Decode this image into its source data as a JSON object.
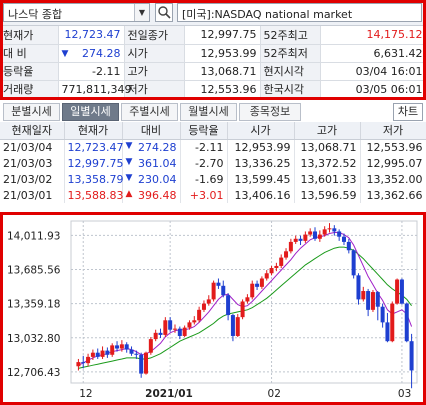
{
  "search": {
    "symbol": "나스닥 종합",
    "market": "[미국]:NASDAQ national market"
  },
  "quote": {
    "rows": [
      [
        {
          "l": "현재가"
        },
        {
          "v": "12,723.47",
          "c": "blue"
        },
        {
          "l": "전일종가"
        },
        {
          "v": "12,997.75"
        },
        {
          "l": "52주최고"
        },
        {
          "v": "14,175.12",
          "c": "red"
        }
      ],
      [
        {
          "l": "대 비"
        },
        {
          "v": "274.28",
          "c": "blue",
          "tri": "▼"
        },
        {
          "l": "시가"
        },
        {
          "v": "12,953.99"
        },
        {
          "l": "52주최저"
        },
        {
          "v": "6,631.42"
        }
      ],
      [
        {
          "l": "등락율"
        },
        {
          "v": "-2.11"
        },
        {
          "l": "고가"
        },
        {
          "v": "13,068.71"
        },
        {
          "l": "현지시각"
        },
        {
          "v": "03/04 16:01"
        }
      ],
      [
        {
          "l": "거래량"
        },
        {
          "v": "771,811,349"
        },
        {
          "l": "저가"
        },
        {
          "v": "12,553.96"
        },
        {
          "l": "한국시각"
        },
        {
          "v": "03/05 06:01"
        }
      ]
    ]
  },
  "tabs": [
    "분별시세",
    "일별시세",
    "주별시세",
    "월별시세",
    "종목정보"
  ],
  "active_tab": 1,
  "chart_button": "차트",
  "grid": {
    "headers": [
      "현재일자",
      "현재가",
      "대비",
      "등락율",
      "시가",
      "고가",
      "저가"
    ],
    "rows": [
      {
        "date": "21/03/04",
        "price": "12,723.47",
        "pc": "blue",
        "tri": "▼",
        "chg": "274.28",
        "rate": "-2.11",
        "rc": "",
        "open": "12,953.99",
        "high": "13,068.71",
        "low": "12,553.96"
      },
      {
        "date": "21/03/03",
        "price": "12,997.75",
        "pc": "blue",
        "tri": "▼",
        "chg": "361.04",
        "rate": "-2.70",
        "rc": "",
        "open": "13,336.25",
        "high": "13,372.52",
        "low": "12,995.07"
      },
      {
        "date": "21/03/02",
        "price": "13,358.79",
        "pc": "blue",
        "tri": "▼",
        "chg": "230.04",
        "rate": "-1.69",
        "rc": "",
        "open": "13,599.45",
        "high": "13,601.33",
        "low": "13,352.00"
      },
      {
        "date": "21/03/01",
        "price": "13,588.83",
        "pc": "red",
        "tri": "▲",
        "chg": "396.48",
        "rate": "+3.01",
        "rc": "red",
        "open": "13,406.16",
        "high": "13,596.59",
        "low": "13,362.66"
      }
    ]
  },
  "colors": {
    "up": "#e21b1b",
    "down": "#1e3fd0",
    "ma_short": "#a020c8",
    "ma_long": "#1a9a1a",
    "frame": "#e00000"
  },
  "chart_data": {
    "type": "candlestick",
    "y_ticks": [
      "14,011.93",
      "13,685.56",
      "13,359.18",
      "13,032.80",
      "12,706.43"
    ],
    "x_labels": [
      "12",
      "2021/01",
      "02",
      "03"
    ],
    "ylim": [
      12600,
      14150
    ],
    "candles": [
      [
        12760,
        12800,
        12720,
        12830
      ],
      [
        12800,
        12790,
        12740,
        12860
      ],
      [
        12790,
        12850,
        12760,
        12880
      ],
      [
        12850,
        12890,
        12820,
        12920
      ],
      [
        12890,
        12850,
        12830,
        12930
      ],
      [
        12850,
        12910,
        12830,
        12950
      ],
      [
        12910,
        12870,
        12840,
        12940
      ],
      [
        12870,
        12960,
        12850,
        12980
      ],
      [
        12960,
        12930,
        12900,
        13000
      ],
      [
        12930,
        12970,
        12900,
        13010
      ],
      [
        12970,
        12920,
        12890,
        12990
      ],
      [
        12920,
        12880,
        12860,
        12950
      ],
      [
        12880,
        12870,
        12830,
        12910
      ],
      [
        12870,
        12690,
        12650,
        12890
      ],
      [
        12690,
        12890,
        12680,
        12900
      ],
      [
        12890,
        13020,
        12870,
        13040
      ],
      [
        13020,
        13080,
        13000,
        13110
      ],
      [
        13080,
        13060,
        13030,
        13120
      ],
      [
        13060,
        13200,
        13040,
        13230
      ],
      [
        13200,
        13110,
        13090,
        13230
      ],
      [
        13110,
        13120,
        13080,
        13160
      ],
      [
        13120,
        13050,
        13020,
        13140
      ],
      [
        13050,
        13130,
        13040,
        13150
      ],
      [
        13130,
        13180,
        13110,
        13200
      ],
      [
        13180,
        13200,
        13160,
        13240
      ],
      [
        13200,
        13300,
        13180,
        13330
      ],
      [
        13300,
        13360,
        13280,
        13390
      ],
      [
        13360,
        13400,
        13340,
        13440
      ],
      [
        13400,
        13560,
        13380,
        13580
      ],
      [
        13560,
        13530,
        13500,
        13600
      ],
      [
        13530,
        13440,
        13420,
        13580
      ],
      [
        13440,
        13250,
        13200,
        13460
      ],
      [
        13250,
        13050,
        13000,
        13260
      ],
      [
        13050,
        13230,
        13040,
        13260
      ],
      [
        13230,
        13380,
        13210,
        13400
      ],
      [
        13380,
        13420,
        13360,
        13450
      ],
      [
        13420,
        13550,
        13400,
        13580
      ],
      [
        13550,
        13520,
        13490,
        13580
      ],
      [
        13520,
        13600,
        13500,
        13620
      ],
      [
        13600,
        13650,
        13580,
        13680
      ],
      [
        13650,
        13700,
        13630,
        13720
      ],
      [
        13700,
        13720,
        13670,
        13750
      ],
      [
        13720,
        13800,
        13700,
        13830
      ],
      [
        13800,
        13860,
        13780,
        13890
      ],
      [
        13860,
        13950,
        13840,
        13980
      ],
      [
        13950,
        13980,
        13930,
        14010
      ],
      [
        13980,
        13960,
        13920,
        14010
      ],
      [
        13960,
        14020,
        13940,
        14050
      ],
      [
        14020,
        14050,
        14000,
        14080
      ],
      [
        14050,
        13980,
        13960,
        14090
      ],
      [
        13980,
        14020,
        13950,
        14060
      ],
      [
        14020,
        14070,
        14000,
        14100
      ],
      [
        14070,
        14080,
        14040,
        14130
      ],
      [
        14080,
        14050,
        14010,
        14110
      ],
      [
        14050,
        14000,
        13960,
        14070
      ],
      [
        14000,
        13950,
        13920,
        14030
      ],
      [
        13950,
        13870,
        13840,
        13980
      ],
      [
        13870,
        13630,
        13600,
        13880
      ],
      [
        13630,
        13400,
        13350,
        13650
      ],
      [
        13400,
        13480,
        13380,
        13520
      ],
      [
        13480,
        13300,
        13240,
        13500
      ],
      [
        13300,
        13470,
        13280,
        13490
      ],
      [
        13470,
        13330,
        13200,
        13480
      ],
      [
        13330,
        13180,
        13130,
        13360
      ],
      [
        13180,
        13000,
        12990,
        13270
      ],
      [
        13000,
        13360,
        12990,
        13380
      ],
      [
        13360,
        13590,
        13350,
        13600
      ],
      [
        13590,
        13360,
        13350,
        13600
      ],
      [
        13360,
        13000,
        12990,
        13370
      ],
      [
        13000,
        12720,
        12550,
        13070
      ]
    ],
    "ma_short": [
      12770,
      12790,
      12820,
      12840,
      12860,
      12870,
      12880,
      12900,
      12910,
      12920,
      12930,
      12920,
      12900,
      12870,
      12880,
      12900,
      12940,
      12980,
      13040,
      13080,
      13100,
      13110,
      13110,
      13120,
      13140,
      13180,
      13230,
      13280,
      13340,
      13400,
      13440,
      13450,
      13400,
      13350,
      13330,
      13340,
      13380,
      13430,
      13480,
      13530,
      13580,
      13630,
      13680,
      13730,
      13780,
      13840,
      13890,
      13930,
      13970,
      13990,
      14000,
      14010,
      14030,
      14040,
      14040,
      14020,
      13990,
      13920,
      13820,
      13720,
      13620,
      13540,
      13460,
      13390,
      13300,
      13260,
      13280,
      13300,
      13260,
      13140
    ],
    "ma_long": [
      12740,
      12750,
      12760,
      12770,
      12780,
      12790,
      12800,
      12810,
      12820,
      12830,
      12840,
      12840,
      12840,
      12830,
      12830,
      12840,
      12860,
      12880,
      12910,
      12940,
      12970,
      13000,
      13020,
      13040,
      13060,
      13080,
      13110,
      13140,
      13170,
      13210,
      13240,
      13260,
      13270,
      13280,
      13290,
      13300,
      13320,
      13350,
      13380,
      13410,
      13450,
      13490,
      13530,
      13570,
      13610,
      13650,
      13690,
      13730,
      13760,
      13790,
      13820,
      13850,
      13870,
      13890,
      13900,
      13900,
      13890,
      13870,
      13830,
      13790,
      13740,
      13690,
      13640,
      13590,
      13540,
      13500,
      13470,
      13440,
      13400,
      13340
    ]
  }
}
